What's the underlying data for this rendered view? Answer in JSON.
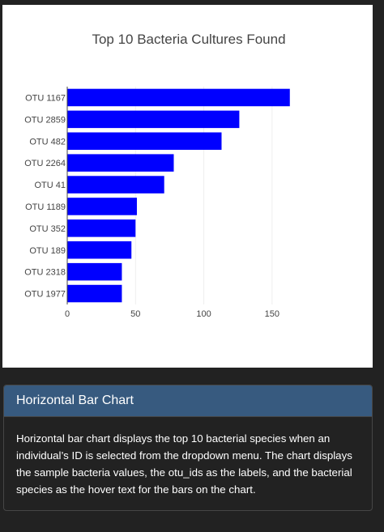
{
  "chart_data": {
    "type": "bar",
    "orientation": "horizontal",
    "title": "Top 10 Bacteria Cultures Found",
    "categories": [
      "OTU 1167",
      "OTU 2859",
      "OTU 482",
      "OTU 2264",
      "OTU 41",
      "OTU 1189",
      "OTU 352",
      "OTU 189",
      "OTU 2318",
      "OTU 1977"
    ],
    "values": [
      163,
      126,
      113,
      78,
      71,
      51,
      50,
      47,
      40,
      40
    ],
    "xlim": [
      0,
      175
    ],
    "xticks": [
      0,
      50,
      100,
      150
    ],
    "bar_color": "#0000ff",
    "grid": true,
    "xlabel": "",
    "ylabel": ""
  },
  "card": {
    "header": "Horizontal Bar Chart",
    "body": "Horizontal bar chart displays the top 10 bacterial species when an individual’s ID is selected from the dropdown menu. The chart displays the sample bacteria values, the otu_ids as the labels, and the bacterial species as the hover text for the bars on the chart."
  },
  "colors": {
    "background": "#222222",
    "card_header": "#375a7f",
    "panel": "#ffffff"
  }
}
